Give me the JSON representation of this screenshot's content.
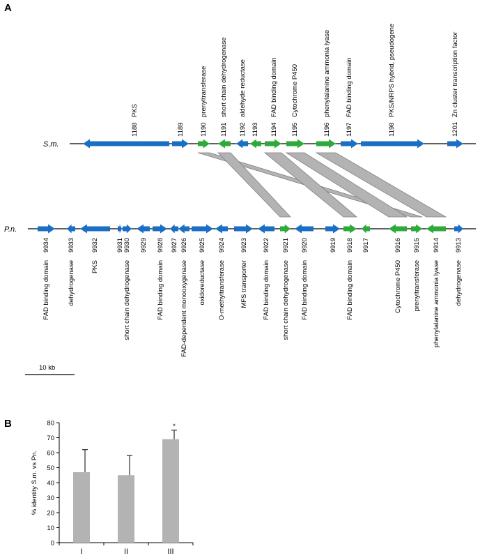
{
  "panel_a": {
    "label": "A",
    "track_sm_label": "S.m.",
    "track_pn_label": "P.n.",
    "colors": {
      "blue": "#1a6fc4",
      "green": "#2eaa3a",
      "link_fill": "#b3b3b3",
      "link_stroke": "#808080"
    },
    "sm_genes": [
      {
        "id": "1188",
        "name": "PKS",
        "dir": "left",
        "color": "blue"
      },
      {
        "id": "1189",
        "name": "",
        "dir": "right",
        "color": "blue"
      },
      {
        "id": "1190",
        "name": "prenyltransferase",
        "dir": "right",
        "color": "green"
      },
      {
        "id": "1191",
        "name": "short chain dehydrogenase",
        "dir": "left",
        "color": "green"
      },
      {
        "id": "1192",
        "name": "aldehyde reductase",
        "dir": "left",
        "color": "blue"
      },
      {
        "id": "1193",
        "name": "",
        "dir": "left",
        "color": "green"
      },
      {
        "id": "1194",
        "name": "FAD binding domain",
        "dir": "right",
        "color": "green"
      },
      {
        "id": "1195",
        "name": "Cytochrome P450",
        "dir": "right",
        "color": "green"
      },
      {
        "id": "1196",
        "name": "phenylalanine ammonia lyase",
        "dir": "right",
        "color": "green"
      },
      {
        "id": "1197",
        "name": "FAD binding domain",
        "dir": "right",
        "color": "blue"
      },
      {
        "id": "1198",
        "name": "PKS/NRPS hybrid, pseudogene",
        "dir": "right",
        "color": "blue"
      },
      {
        "id": "1201",
        "name": "Zn cluster transcription factor",
        "dir": "right",
        "color": "blue"
      }
    ],
    "pn_genes": [
      {
        "id": "9934",
        "name": "FAD binding domain",
        "dir": "right",
        "color": "blue"
      },
      {
        "id": "9933",
        "name": "dehydrogenase",
        "dir": "left",
        "color": "blue"
      },
      {
        "id": "9932",
        "name": "PKS",
        "dir": "left",
        "color": "blue"
      },
      {
        "id": "9931",
        "name": "",
        "dir": "right",
        "color": "blue"
      },
      {
        "id": "9930",
        "name": "short chain dehydrogenase",
        "dir": "right",
        "color": "blue"
      },
      {
        "id": "9929",
        "name": "",
        "dir": "left",
        "color": "blue"
      },
      {
        "id": "9928",
        "name": "FAD binding domain",
        "dir": "right",
        "color": "blue"
      },
      {
        "id": "9927",
        "name": "",
        "dir": "left",
        "color": "blue"
      },
      {
        "id": "9926",
        "name": "FAD-dependent monooxygenase",
        "dir": "left",
        "color": "blue"
      },
      {
        "id": "9925",
        "name": "oxidoreductase",
        "dir": "right",
        "color": "blue"
      },
      {
        "id": "9924",
        "name": "O-methyltransferase",
        "dir": "left",
        "color": "blue"
      },
      {
        "id": "9923",
        "name": "MFS transporter",
        "dir": "right",
        "color": "blue"
      },
      {
        "id": "9922",
        "name": "FAD binding domain",
        "dir": "left",
        "color": "blue"
      },
      {
        "id": "9921",
        "name": "short chain dehydrogenase",
        "dir": "right",
        "color": "green"
      },
      {
        "id": "9920",
        "name": "FAD binding domain",
        "dir": "left",
        "color": "blue"
      },
      {
        "id": "9919",
        "name": "",
        "dir": "right",
        "color": "blue"
      },
      {
        "id": "9918",
        "name": "FAD binding domain",
        "dir": "right",
        "color": "green"
      },
      {
        "id": "9917",
        "name": "",
        "dir": "left",
        "color": "green"
      },
      {
        "id": "9916",
        "name": "Cytochrome P450",
        "dir": "left",
        "color": "green"
      },
      {
        "id": "9915",
        "name": "prenyltransferase",
        "dir": "right",
        "color": "green"
      },
      {
        "id": "9914",
        "name": "phenylalanine ammonia lyase",
        "dir": "left",
        "color": "green"
      },
      {
        "id": "9913",
        "name": "dehydrogenase",
        "dir": "right",
        "color": "blue"
      }
    ],
    "homology_links": [
      {
        "sm": "1190",
        "pn": "9915"
      },
      {
        "sm": "1191",
        "pn": "9921"
      },
      {
        "sm": "1194",
        "pn": "9918"
      },
      {
        "sm": "1195",
        "pn": "9916"
      },
      {
        "sm": "1196",
        "pn": "9914"
      }
    ],
    "scale_bar_label": "10 kb"
  },
  "panel_b": {
    "label": "B"
  },
  "chart_data": {
    "type": "bar",
    "categories": [
      "I",
      "II",
      "III"
    ],
    "values": [
      47,
      45,
      69
    ],
    "error_plus": [
      15,
      13,
      6
    ],
    "annotations": [
      "",
      "",
      "*"
    ],
    "ylabel": "% identity S.m. vs Pn.",
    "ylim": [
      0,
      80
    ],
    "yticks": [
      "0",
      "10",
      "20",
      "30",
      "40",
      "50",
      "60",
      "70",
      "80"
    ],
    "bar_color": "#b3b3b3",
    "grid": false
  }
}
